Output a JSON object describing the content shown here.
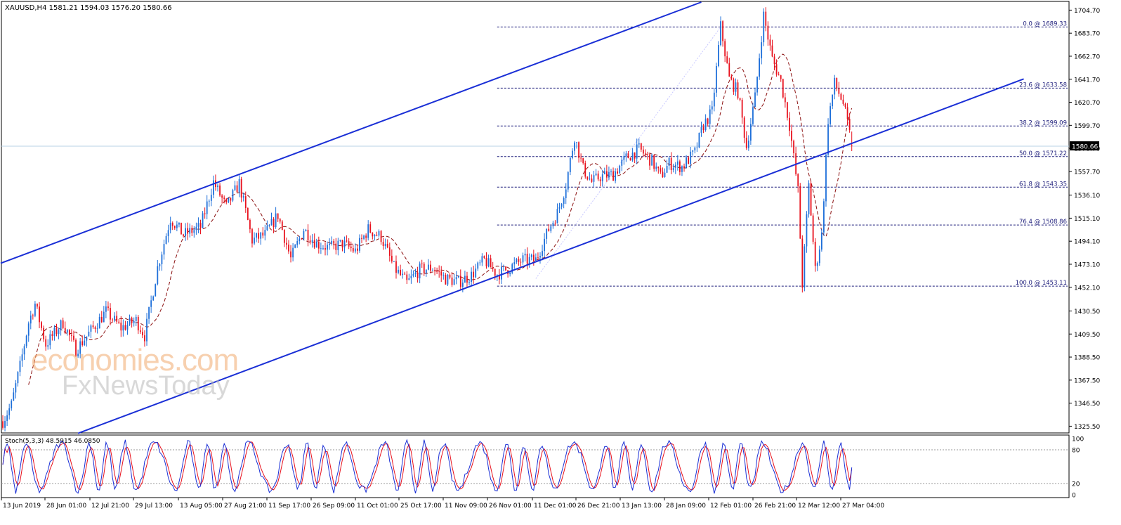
{
  "header": {
    "symbol_info": "XAUUSD,H4  1581.21 1594.03 1576.20 1580.66",
    "current_price_label": "1580.66"
  },
  "indicator": {
    "label": "Stoch(5,3,3) 48.5915 46.0850",
    "levels": [
      100,
      80,
      20,
      0
    ],
    "scale_labels": [
      "100",
      "80",
      "20",
      "0"
    ]
  },
  "watermark": {
    "line1": "economies.com",
    "line2": "FxNewsToday",
    "brand_mark_lettering": "economies.com / FxNewsToday"
  },
  "colors": {
    "background": "#ffffff",
    "bull_candle": "#1e6fd9",
    "bear_candle": "#e8101c",
    "moving_average": "#8b1010",
    "channel": "#1a2fd6",
    "fib_lines": "#1c1c7a",
    "stoch_main": "#1a2fd6",
    "stoch_signal": "#e8101c",
    "current_price_line": "#b9d3e6"
  },
  "chart_data": {
    "type": "candlestick",
    "instrument": "XAUUSD",
    "timeframe": "H4",
    "last_ohlc": {
      "open": 1581.21,
      "high": 1594.03,
      "low": 1576.2,
      "close": 1580.66
    },
    "y_range": [
      1320,
      1712
    ],
    "y_ticks": [
      1704.7,
      1683.7,
      1662.7,
      1641.7,
      1620.7,
      1599.7,
      1578.7,
      1557.7,
      1536.1,
      1515.1,
      1494.1,
      1473.1,
      1452.1,
      1430.5,
      1409.5,
      1388.5,
      1367.5,
      1346.5,
      1325.5
    ],
    "y_tick_labels": [
      "1704.70",
      "1683.70",
      "1662.70",
      "1641.70",
      "1620.70",
      "1599.70",
      "1578.70",
      "1557.70",
      "1536.10",
      "1515.10",
      "1494.10",
      "1473.10",
      "1452.10",
      "1430.50",
      "1409.50",
      "1388.50",
      "1367.50",
      "1346.50",
      "1325.50"
    ],
    "x_labels": [
      "13 Jun 2019",
      "28 Jun 01:00",
      "12 Jul 21:00",
      "29 Jul 13:00",
      "13 Aug 05:00",
      "27 Aug 21:00",
      "11 Sep 17:00",
      "26 Sep 09:00",
      "11 Oct 01:00",
      "25 Oct 17:00",
      "11 Nov 09:00",
      "26 Nov 01:00",
      "11 Dec 01:00",
      "26 Dec 21:00",
      "13 Jan 13:00",
      "28 Jan 09:00",
      "12 Feb 01:00",
      "26 Feb 21:00",
      "12 Mar 12:00",
      "27 Mar 04:00"
    ],
    "anchors": [
      {
        "i": 0,
        "p": 1330
      },
      {
        "i": 4,
        "p": 1345
      },
      {
        "i": 8,
        "p": 1380
      },
      {
        "i": 12,
        "p": 1420
      },
      {
        "i": 15,
        "p": 1437
      },
      {
        "i": 20,
        "p": 1400
      },
      {
        "i": 28,
        "p": 1420
      },
      {
        "i": 34,
        "p": 1395
      },
      {
        "i": 40,
        "p": 1410
      },
      {
        "i": 48,
        "p": 1430
      },
      {
        "i": 55,
        "p": 1415
      },
      {
        "i": 62,
        "p": 1422
      },
      {
        "i": 66,
        "p": 1408
      },
      {
        "i": 72,
        "p": 1470
      },
      {
        "i": 78,
        "p": 1515
      },
      {
        "i": 84,
        "p": 1500
      },
      {
        "i": 92,
        "p": 1507
      },
      {
        "i": 98,
        "p": 1548
      },
      {
        "i": 104,
        "p": 1525
      },
      {
        "i": 110,
        "p": 1547
      },
      {
        "i": 116,
        "p": 1495
      },
      {
        "i": 122,
        "p": 1500
      },
      {
        "i": 128,
        "p": 1518
      },
      {
        "i": 134,
        "p": 1478
      },
      {
        "i": 140,
        "p": 1505
      },
      {
        "i": 146,
        "p": 1492
      },
      {
        "i": 152,
        "p": 1488
      },
      {
        "i": 158,
        "p": 1492
      },
      {
        "i": 164,
        "p": 1485
      },
      {
        "i": 170,
        "p": 1505
      },
      {
        "i": 176,
        "p": 1498
      },
      {
        "i": 182,
        "p": 1470
      },
      {
        "i": 188,
        "p": 1456
      },
      {
        "i": 194,
        "p": 1468
      },
      {
        "i": 200,
        "p": 1470
      },
      {
        "i": 206,
        "p": 1460
      },
      {
        "i": 212,
        "p": 1457
      },
      {
        "i": 218,
        "p": 1463
      },
      {
        "i": 224,
        "p": 1477
      },
      {
        "i": 230,
        "p": 1464
      },
      {
        "i": 236,
        "p": 1470
      },
      {
        "i": 242,
        "p": 1477
      },
      {
        "i": 248,
        "p": 1477
      },
      {
        "i": 254,
        "p": 1505
      },
      {
        "i": 258,
        "p": 1520
      },
      {
        "i": 262,
        "p": 1545
      },
      {
        "i": 266,
        "p": 1590
      },
      {
        "i": 270,
        "p": 1560
      },
      {
        "i": 274,
        "p": 1548
      },
      {
        "i": 278,
        "p": 1553
      },
      {
        "i": 284,
        "p": 1555
      },
      {
        "i": 290,
        "p": 1570
      },
      {
        "i": 296,
        "p": 1578
      },
      {
        "i": 302,
        "p": 1567
      },
      {
        "i": 306,
        "p": 1553
      },
      {
        "i": 310,
        "p": 1565
      },
      {
        "i": 316,
        "p": 1562
      },
      {
        "i": 322,
        "p": 1575
      },
      {
        "i": 326,
        "p": 1600
      },
      {
        "i": 330,
        "p": 1612
      },
      {
        "i": 334,
        "p": 1690
      },
      {
        "i": 338,
        "p": 1642
      },
      {
        "i": 342,
        "p": 1630
      },
      {
        "i": 346,
        "p": 1580
      },
      {
        "i": 350,
        "p": 1625
      },
      {
        "i": 354,
        "p": 1700
      },
      {
        "i": 358,
        "p": 1660
      },
      {
        "i": 362,
        "p": 1640
      },
      {
        "i": 366,
        "p": 1600
      },
      {
        "i": 370,
        "p": 1540
      },
      {
        "i": 372,
        "p": 1455
      },
      {
        "i": 375,
        "p": 1545
      },
      {
        "i": 378,
        "p": 1468
      },
      {
        "i": 381,
        "p": 1500
      },
      {
        "i": 384,
        "p": 1605
      },
      {
        "i": 387,
        "p": 1638
      },
      {
        "i": 391,
        "p": 1620
      },
      {
        "i": 395,
        "p": 1582
      }
    ],
    "channel_lines": [
      {
        "name": "upper",
        "points": [
          {
            "i": -1,
            "p": 1474
          },
          {
            "i": 325,
            "p": 1712
          }
        ]
      },
      {
        "name": "lower",
        "points": [
          {
            "i": 35,
            "p": 1319
          },
          {
            "i": 475,
            "p": 1642
          }
        ]
      }
    ],
    "fibonacci": [
      {
        "label": "0.0 @ 1689.33",
        "price": 1689.33
      },
      {
        "label": "23.6 @ 1633.58",
        "price": 1633.58
      },
      {
        "label": "38.2 @ 1599.09",
        "price": 1599.09
      },
      {
        "label": "50.0 @ 1571.22",
        "price": 1571.22
      },
      {
        "label": "61.8 @ 1543.35",
        "price": 1543.35
      },
      {
        "label": "76.4 @ 1508.86",
        "price": 1508.86
      },
      {
        "label": "100.0 @ 1453.11",
        "price": 1453.11
      }
    ],
    "fib_start_index": 230,
    "current_price": 1580.66,
    "stochastic": {
      "k": 5,
      "d": 3,
      "slowing": 3,
      "main_last": 48.5915,
      "signal_last": 46.085,
      "overbought": 80,
      "oversold": 20,
      "y_range": [
        0,
        100
      ]
    }
  }
}
